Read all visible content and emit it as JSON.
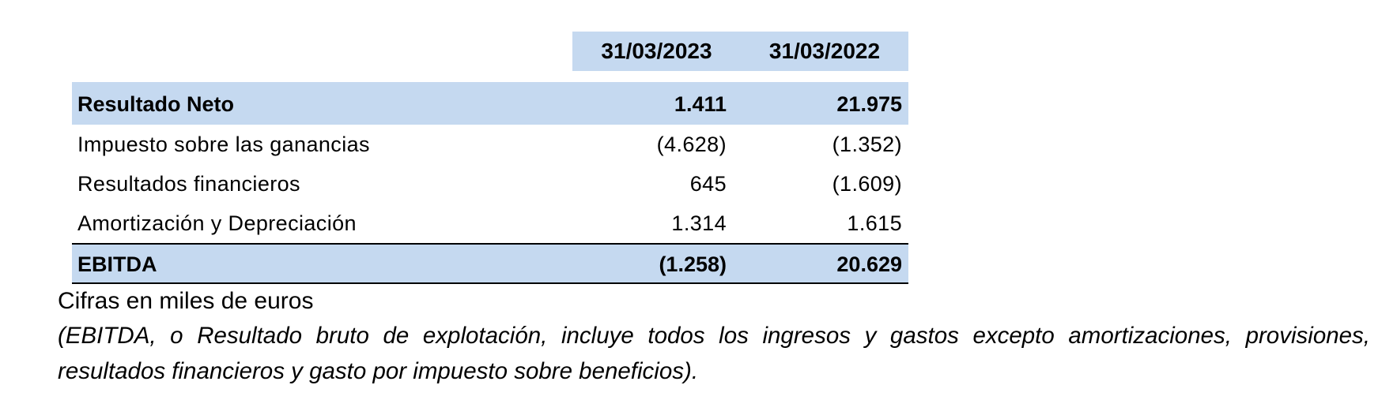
{
  "table": {
    "columns": [
      "31/03/2023",
      "31/03/2022"
    ],
    "rows": [
      {
        "label": "Resultado Neto",
        "v2023": "1.411",
        "v2022": "21.975"
      },
      {
        "label": "Impuesto sobre las ganancias",
        "v2023": "(4.628)",
        "v2022": "(1.352)"
      },
      {
        "label": "Resultados financieros",
        "v2023": "645",
        "v2022": "(1.609)"
      },
      {
        "label": "Amortización y Depreciación",
        "v2023": "1.314",
        "v2022": "1.615"
      },
      {
        "label": "EBITDA",
        "v2023": "(1.258)",
        "v2022": "20.629"
      }
    ]
  },
  "note": "Cifras en miles de euros",
  "explanation": "(EBITDA, o Resultado bruto de explotación, incluye todos los ingresos y gastos excepto amortizaciones, provisiones, resultados financieros y gasto por impuesto sobre beneficios).",
  "colors": {
    "highlight": "#c5d9f0"
  }
}
